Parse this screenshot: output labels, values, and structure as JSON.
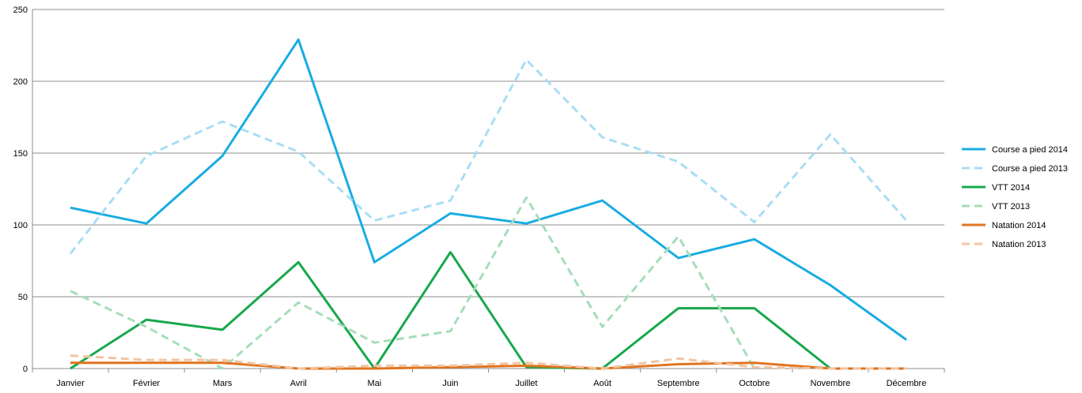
{
  "chart_data": {
    "type": "line",
    "title": "",
    "xlabel": "",
    "ylabel": "",
    "ylim": [
      0,
      250
    ],
    "yticks": [
      0,
      50,
      100,
      150,
      200,
      250
    ],
    "grid": "horizontal",
    "legend_position": "right",
    "categories": [
      "Janvier",
      "Février",
      "Mars",
      "Avril",
      "Mai",
      "Juin",
      "Juillet",
      "Août",
      "Septembre",
      "Octobre",
      "Novembre",
      "Décembre"
    ],
    "series": [
      {
        "name": "Course a pied 2014",
        "color": "#1AACE2",
        "dashed": false,
        "values": [
          112,
          101,
          148,
          229,
          74,
          108,
          101,
          117,
          77,
          90,
          58,
          20
        ]
      },
      {
        "name": "Course a pied 2013",
        "color": "#A8DEF3",
        "dashed": true,
        "values": [
          80,
          148,
          172,
          151,
          103,
          117,
          215,
          161,
          144,
          102,
          163,
          103
        ]
      },
      {
        "name": "VTT 2014",
        "color": "#18A84C",
        "dashed": false,
        "values": [
          0,
          34,
          27,
          74,
          0,
          81,
          1,
          0,
          42,
          42,
          0,
          null
        ]
      },
      {
        "name": "VTT 2013",
        "color": "#A6DDB8",
        "dashed": true,
        "values": [
          54,
          29,
          0,
          46,
          18,
          26,
          119,
          29,
          92,
          0,
          null,
          null
        ]
      },
      {
        "name": "Natation 2014",
        "color": "#E07520",
        "dashed": false,
        "values": [
          4,
          4,
          4,
          0,
          0,
          1,
          2,
          0,
          3,
          4,
          0,
          0
        ]
      },
      {
        "name": "Natation 2013",
        "color": "#F2C4A2",
        "dashed": true,
        "values": [
          9,
          6,
          6,
          0,
          2,
          2,
          4,
          0,
          7,
          1,
          0,
          0
        ]
      }
    ]
  }
}
